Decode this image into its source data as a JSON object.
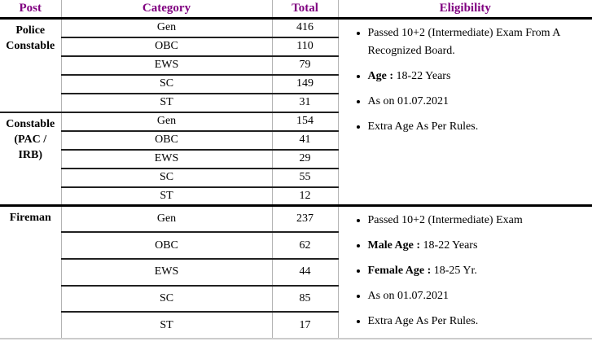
{
  "header": {
    "post": "Post",
    "category": "Category",
    "total": "Total",
    "eligibility": "Eligibility"
  },
  "blocks": [
    {
      "post": "Police Constable",
      "rows": [
        {
          "c": "Gen",
          "t": "416"
        },
        {
          "c": "OBC",
          "t": "110"
        },
        {
          "c": "EWS",
          "t": "79"
        },
        {
          "c": "SC",
          "t": "149"
        },
        {
          "c": "ST",
          "t": "31"
        }
      ]
    },
    {
      "post": "Constable (PAC / IRB)",
      "rows": [
        {
          "c": "Gen",
          "t": "154"
        },
        {
          "c": "OBC",
          "t": "41"
        },
        {
          "c": "EWS",
          "t": "29"
        },
        {
          "c": "SC",
          "t": "55"
        },
        {
          "c": "ST",
          "t": "12"
        }
      ]
    },
    {
      "post": "Fireman",
      "rows": [
        {
          "c": "Gen",
          "t": "237"
        },
        {
          "c": "OBC",
          "t": "62"
        },
        {
          "c": "EWS",
          "t": "44"
        },
        {
          "c": "SC",
          "t": "85"
        },
        {
          "c": "ST",
          "t": "17"
        }
      ]
    }
  ],
  "eligibility": {
    "constable": [
      {
        "b": "",
        "t": "Passed 10+2 (Intermediate) Exam From A Recognized Board."
      },
      {
        "b": "Age : ",
        "t": "18-22 Years"
      },
      {
        "b": "",
        "t": "As on 01.07.2021"
      },
      {
        "b": "",
        "t": "Extra Age As Per Rules."
      }
    ],
    "fireman": [
      {
        "b": "",
        "t": "Passed 10+2 (Intermediate) Exam"
      },
      {
        "b": "Male Age : ",
        "t": "18-22 Years"
      },
      {
        "b": "Female Age : ",
        "t": "18-25 Yr."
      },
      {
        "b": "",
        "t": "As on 01.07.2021"
      },
      {
        "b": "",
        "t": "Extra Age As Per Rules."
      }
    ]
  },
  "colors": {
    "header_text": "#800080",
    "body_text": "#000000",
    "row_line": "#212121",
    "section_line": "#000000",
    "column_line": "#b3b3b3",
    "table_bottom_line": "#cccccc"
  }
}
